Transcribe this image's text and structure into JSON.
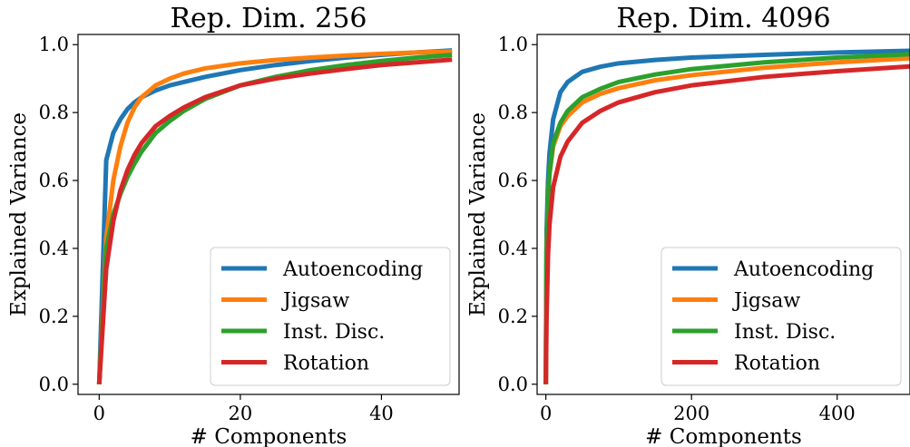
{
  "chart_data": [
    {
      "type": "line",
      "title": "Rep. Dim. 256",
      "xlabel": "# Components",
      "ylabel": "Explained Variance",
      "xlim": [
        -3,
        51
      ],
      "ylim": [
        -0.03,
        1.03
      ],
      "xticks": [
        0,
        20,
        40
      ],
      "yticks": [
        0.0,
        0.2,
        0.4,
        0.6,
        0.8,
        1.0
      ],
      "legend_position": "lower-right",
      "x": [
        0,
        1,
        2,
        3,
        4,
        5,
        6,
        8,
        10,
        12,
        15,
        20,
        25,
        30,
        35,
        40,
        45,
        50
      ],
      "series": [
        {
          "name": "Autoencoding",
          "color": "#1f77b4",
          "values": [
            0.0,
            0.66,
            0.74,
            0.78,
            0.81,
            0.83,
            0.845,
            0.865,
            0.88,
            0.89,
            0.905,
            0.925,
            0.94,
            0.952,
            0.962,
            0.97,
            0.977,
            0.983
          ]
        },
        {
          "name": "Jigsaw",
          "color": "#ff7f0e",
          "values": [
            0.0,
            0.43,
            0.6,
            0.7,
            0.77,
            0.815,
            0.845,
            0.88,
            0.9,
            0.915,
            0.93,
            0.945,
            0.955,
            0.962,
            0.968,
            0.973,
            0.977,
            0.98
          ]
        },
        {
          "name": "Inst. Disc.",
          "color": "#2ca02c",
          "values": [
            0.0,
            0.4,
            0.5,
            0.56,
            0.61,
            0.65,
            0.685,
            0.74,
            0.775,
            0.805,
            0.84,
            0.88,
            0.905,
            0.925,
            0.94,
            0.952,
            0.962,
            0.97
          ]
        },
        {
          "name": "Rotation",
          "color": "#d62728",
          "values": [
            0.0,
            0.34,
            0.48,
            0.57,
            0.63,
            0.675,
            0.71,
            0.76,
            0.79,
            0.815,
            0.845,
            0.88,
            0.9,
            0.915,
            0.928,
            0.94,
            0.948,
            0.956
          ]
        }
      ]
    },
    {
      "type": "line",
      "title": "Rep. Dim. 4096",
      "xlabel": "# Components",
      "ylabel": "Explained Variance",
      "xlim": [
        -12,
        500
      ],
      "ylim": [
        -0.03,
        1.03
      ],
      "xticks": [
        0,
        200,
        400
      ],
      "yticks": [
        0.0,
        0.2,
        0.4,
        0.6,
        0.8,
        1.0
      ],
      "legend_position": "lower-right",
      "x": [
        0,
        1,
        3,
        5,
        10,
        20,
        30,
        50,
        75,
        100,
        150,
        200,
        300,
        400,
        500
      ],
      "series": [
        {
          "name": "Autoencoding",
          "color": "#1f77b4",
          "values": [
            0.0,
            0.45,
            0.6,
            0.68,
            0.78,
            0.86,
            0.89,
            0.92,
            0.935,
            0.945,
            0.955,
            0.962,
            0.97,
            0.977,
            0.982
          ]
        },
        {
          "name": "Jigsaw",
          "color": "#ff7f0e",
          "values": [
            0.0,
            0.4,
            0.55,
            0.62,
            0.7,
            0.76,
            0.79,
            0.83,
            0.855,
            0.872,
            0.895,
            0.91,
            0.932,
            0.948,
            0.96
          ]
        },
        {
          "name": "Inst. Disc.",
          "color": "#2ca02c",
          "values": [
            0.0,
            0.4,
            0.55,
            0.62,
            0.71,
            0.77,
            0.805,
            0.845,
            0.87,
            0.89,
            0.912,
            0.928,
            0.948,
            0.962,
            0.972
          ]
        },
        {
          "name": "Rotation",
          "color": "#d62728",
          "values": [
            0.0,
            0.2,
            0.38,
            0.47,
            0.58,
            0.67,
            0.715,
            0.77,
            0.805,
            0.83,
            0.86,
            0.88,
            0.905,
            0.922,
            0.936
          ]
        }
      ]
    }
  ]
}
